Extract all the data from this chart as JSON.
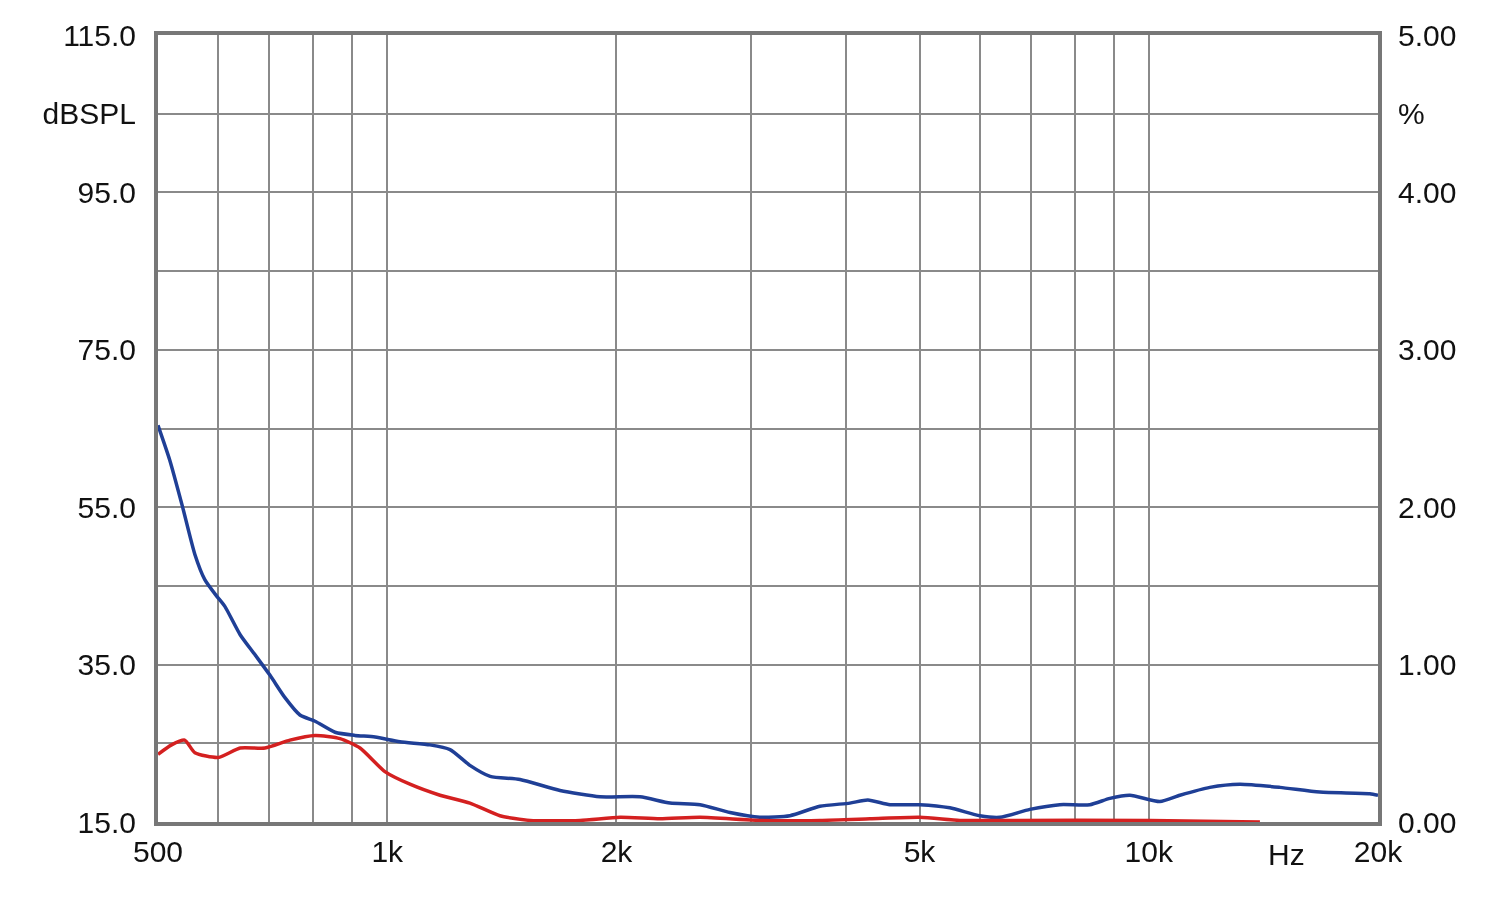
{
  "chart_data": {
    "type": "line",
    "xlabel": "Hz",
    "log": "x",
    "grid": true,
    "marker": "none",
    "line_style": "solid",
    "xlim": [
      500,
      20000
    ],
    "xticks": [
      500,
      {
        "value": 600,
        "label": null
      },
      {
        "value": 700,
        "label": null
      },
      {
        "value": 800,
        "label": null
      },
      {
        "value": 900,
        "label": null
      },
      {
        "value": 1000,
        "label": "1k"
      },
      {
        "value": 2000,
        "label": "2k"
      },
      {
        "value": 3000,
        "label": null
      },
      {
        "value": 4000,
        "label": null
      },
      {
        "value": 5000,
        "label": "5k"
      },
      {
        "value": 6000,
        "label": null
      },
      {
        "value": 7000,
        "label": null
      },
      {
        "value": 8000,
        "label": null
      },
      {
        "value": 9000,
        "label": null
      },
      {
        "value": 10000,
        "label": "10k"
      },
      {
        "value": 20000,
        "label": "20k"
      }
    ],
    "ylim": [
      15,
      115
    ],
    "yticks": [
      {
        "value": 15,
        "label": "15.0"
      },
      {
        "value": 25,
        "label": null
      },
      {
        "value": 35,
        "label": "35.0"
      },
      {
        "value": 45,
        "label": null
      },
      {
        "value": 55,
        "label": "55.0"
      },
      {
        "value": 65,
        "label": null
      },
      {
        "value": 75,
        "label": "75.0"
      },
      {
        "value": 85,
        "label": null
      },
      {
        "value": 95,
        "label": "95.0"
      },
      {
        "value": 105,
        "label": "dBSPL"
      },
      {
        "value": 115,
        "label": "115.0"
      }
    ],
    "y2lim": [
      0,
      5
    ],
    "y2ticks": [
      {
        "value": 0,
        "label": "0.00"
      },
      {
        "value": 1,
        "label": "1.00"
      },
      {
        "value": 2,
        "label": "2.00"
      },
      {
        "value": 3,
        "label": "3.00"
      },
      {
        "value": 4,
        "label": "4.00"
      },
      {
        "value": 4.5,
        "label": "%"
      },
      {
        "value": 5,
        "label": "5.00"
      }
    ],
    "series": [
      {
        "color": "#1f3f96",
        "axis": "y2",
        "x": [
          500,
          518,
          538,
          559,
          576,
          596,
          612,
          641,
          671,
          702,
          734,
          768,
          804,
          854,
          907,
          964,
          1039,
          1138,
          1209,
          1284,
          1365,
          1494,
          1686,
          1903,
          2147,
          2352,
          2575,
          2819,
          3086,
          3379,
          3699,
          4050,
          4277,
          4572,
          5006,
          5480,
          6000,
          6375,
          6980,
          7642,
          8367,
          8891,
          9446,
          10342,
          10988,
          12030,
          13170,
          14865,
          16770,
          19510,
          20000
        ],
        "values": [
          2.52,
          2.3,
          2.01,
          1.7,
          1.54,
          1.44,
          1.37,
          1.19,
          1.06,
          0.93,
          0.79,
          0.68,
          0.64,
          0.57,
          0.55,
          0.54,
          0.51,
          0.49,
          0.46,
          0.36,
          0.29,
          0.27,
          0.2,
          0.16,
          0.16,
          0.12,
          0.11,
          0.06,
          0.03,
          0.04,
          0.1,
          0.12,
          0.14,
          0.11,
          0.11,
          0.09,
          0.04,
          0.03,
          0.08,
          0.11,
          0.11,
          0.15,
          0.17,
          0.13,
          0.17,
          0.22,
          0.24,
          0.22,
          0.19,
          0.18,
          0.17
        ]
      },
      {
        "color": "#d42020",
        "axis": "y2",
        "x": [
          500,
          521,
          542,
          559,
          600,
          641,
          691,
          745,
          804,
          867,
          921,
          993,
          1071,
          1173,
          1284,
          1406,
          1540,
          1791,
          2022,
          2281,
          2575,
          3086,
          3699,
          4304,
          5006,
          5650,
          6375,
          10034,
          13995
        ],
        "values": [
          0.43,
          0.49,
          0.52,
          0.44,
          0.41,
          0.47,
          0.47,
          0.52,
          0.55,
          0.53,
          0.47,
          0.32,
          0.24,
          0.17,
          0.12,
          0.04,
          0.01,
          0.01,
          0.03,
          0.02,
          0.03,
          0.01,
          0.01,
          0.02,
          0.03,
          0.01,
          0.01,
          0.01,
          0
        ]
      }
    ]
  }
}
